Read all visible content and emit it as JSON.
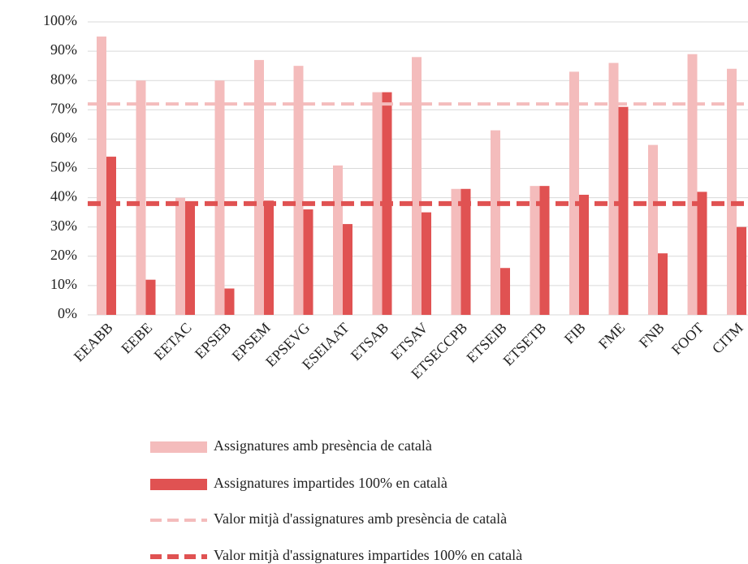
{
  "chart_data": {
    "type": "bar",
    "categories": [
      "EEABB",
      "EEBE",
      "EETAC",
      "EPSEB",
      "EPSEM",
      "EPSEVG",
      "ESEIAAT",
      "ETSAB",
      "ETSAV",
      "ETSECCPB",
      "ETSEIB",
      "ETSETB",
      "FIB",
      "FME",
      "FNB",
      "FOOT",
      "CITM"
    ],
    "series": [
      {
        "name": "Assignatures amb presència de català",
        "color": "#f4bcbc",
        "values": [
          95,
          80,
          40,
          80,
          87,
          85,
          51,
          76,
          88,
          43,
          63,
          44,
          83,
          86,
          58,
          89,
          84
        ]
      },
      {
        "name": "Assignatures impartides 100% en català",
        "color": "#e05252",
        "values": [
          54,
          12,
          38,
          9,
          39,
          36,
          31,
          76,
          35,
          43,
          16,
          44,
          41,
          71,
          21,
          42,
          30
        ]
      }
    ],
    "reference_lines": [
      {
        "name": "Valor mitjà d'assignatures amb presència de català",
        "color": "#f4bcbc",
        "value": 72
      },
      {
        "name": "Valor mitjà d'assignatures impartides 100% en català",
        "color": "#e05252",
        "value": 38
      }
    ],
    "ylim": [
      0,
      100
    ],
    "yticks": [
      {
        "value": 0,
        "label": "0%"
      },
      {
        "value": 10,
        "label": "10%"
      },
      {
        "value": 20,
        "label": "20%"
      },
      {
        "value": 30,
        "label": "30%"
      },
      {
        "value": 40,
        "label": "40%"
      },
      {
        "value": 50,
        "label": "50%"
      },
      {
        "value": 60,
        "label": "60%"
      },
      {
        "value": 70,
        "label": "70%"
      },
      {
        "value": 80,
        "label": "80%"
      },
      {
        "value": 90,
        "label": "90%"
      },
      {
        "value": 100,
        "label": "100%"
      }
    ],
    "grid": true
  }
}
